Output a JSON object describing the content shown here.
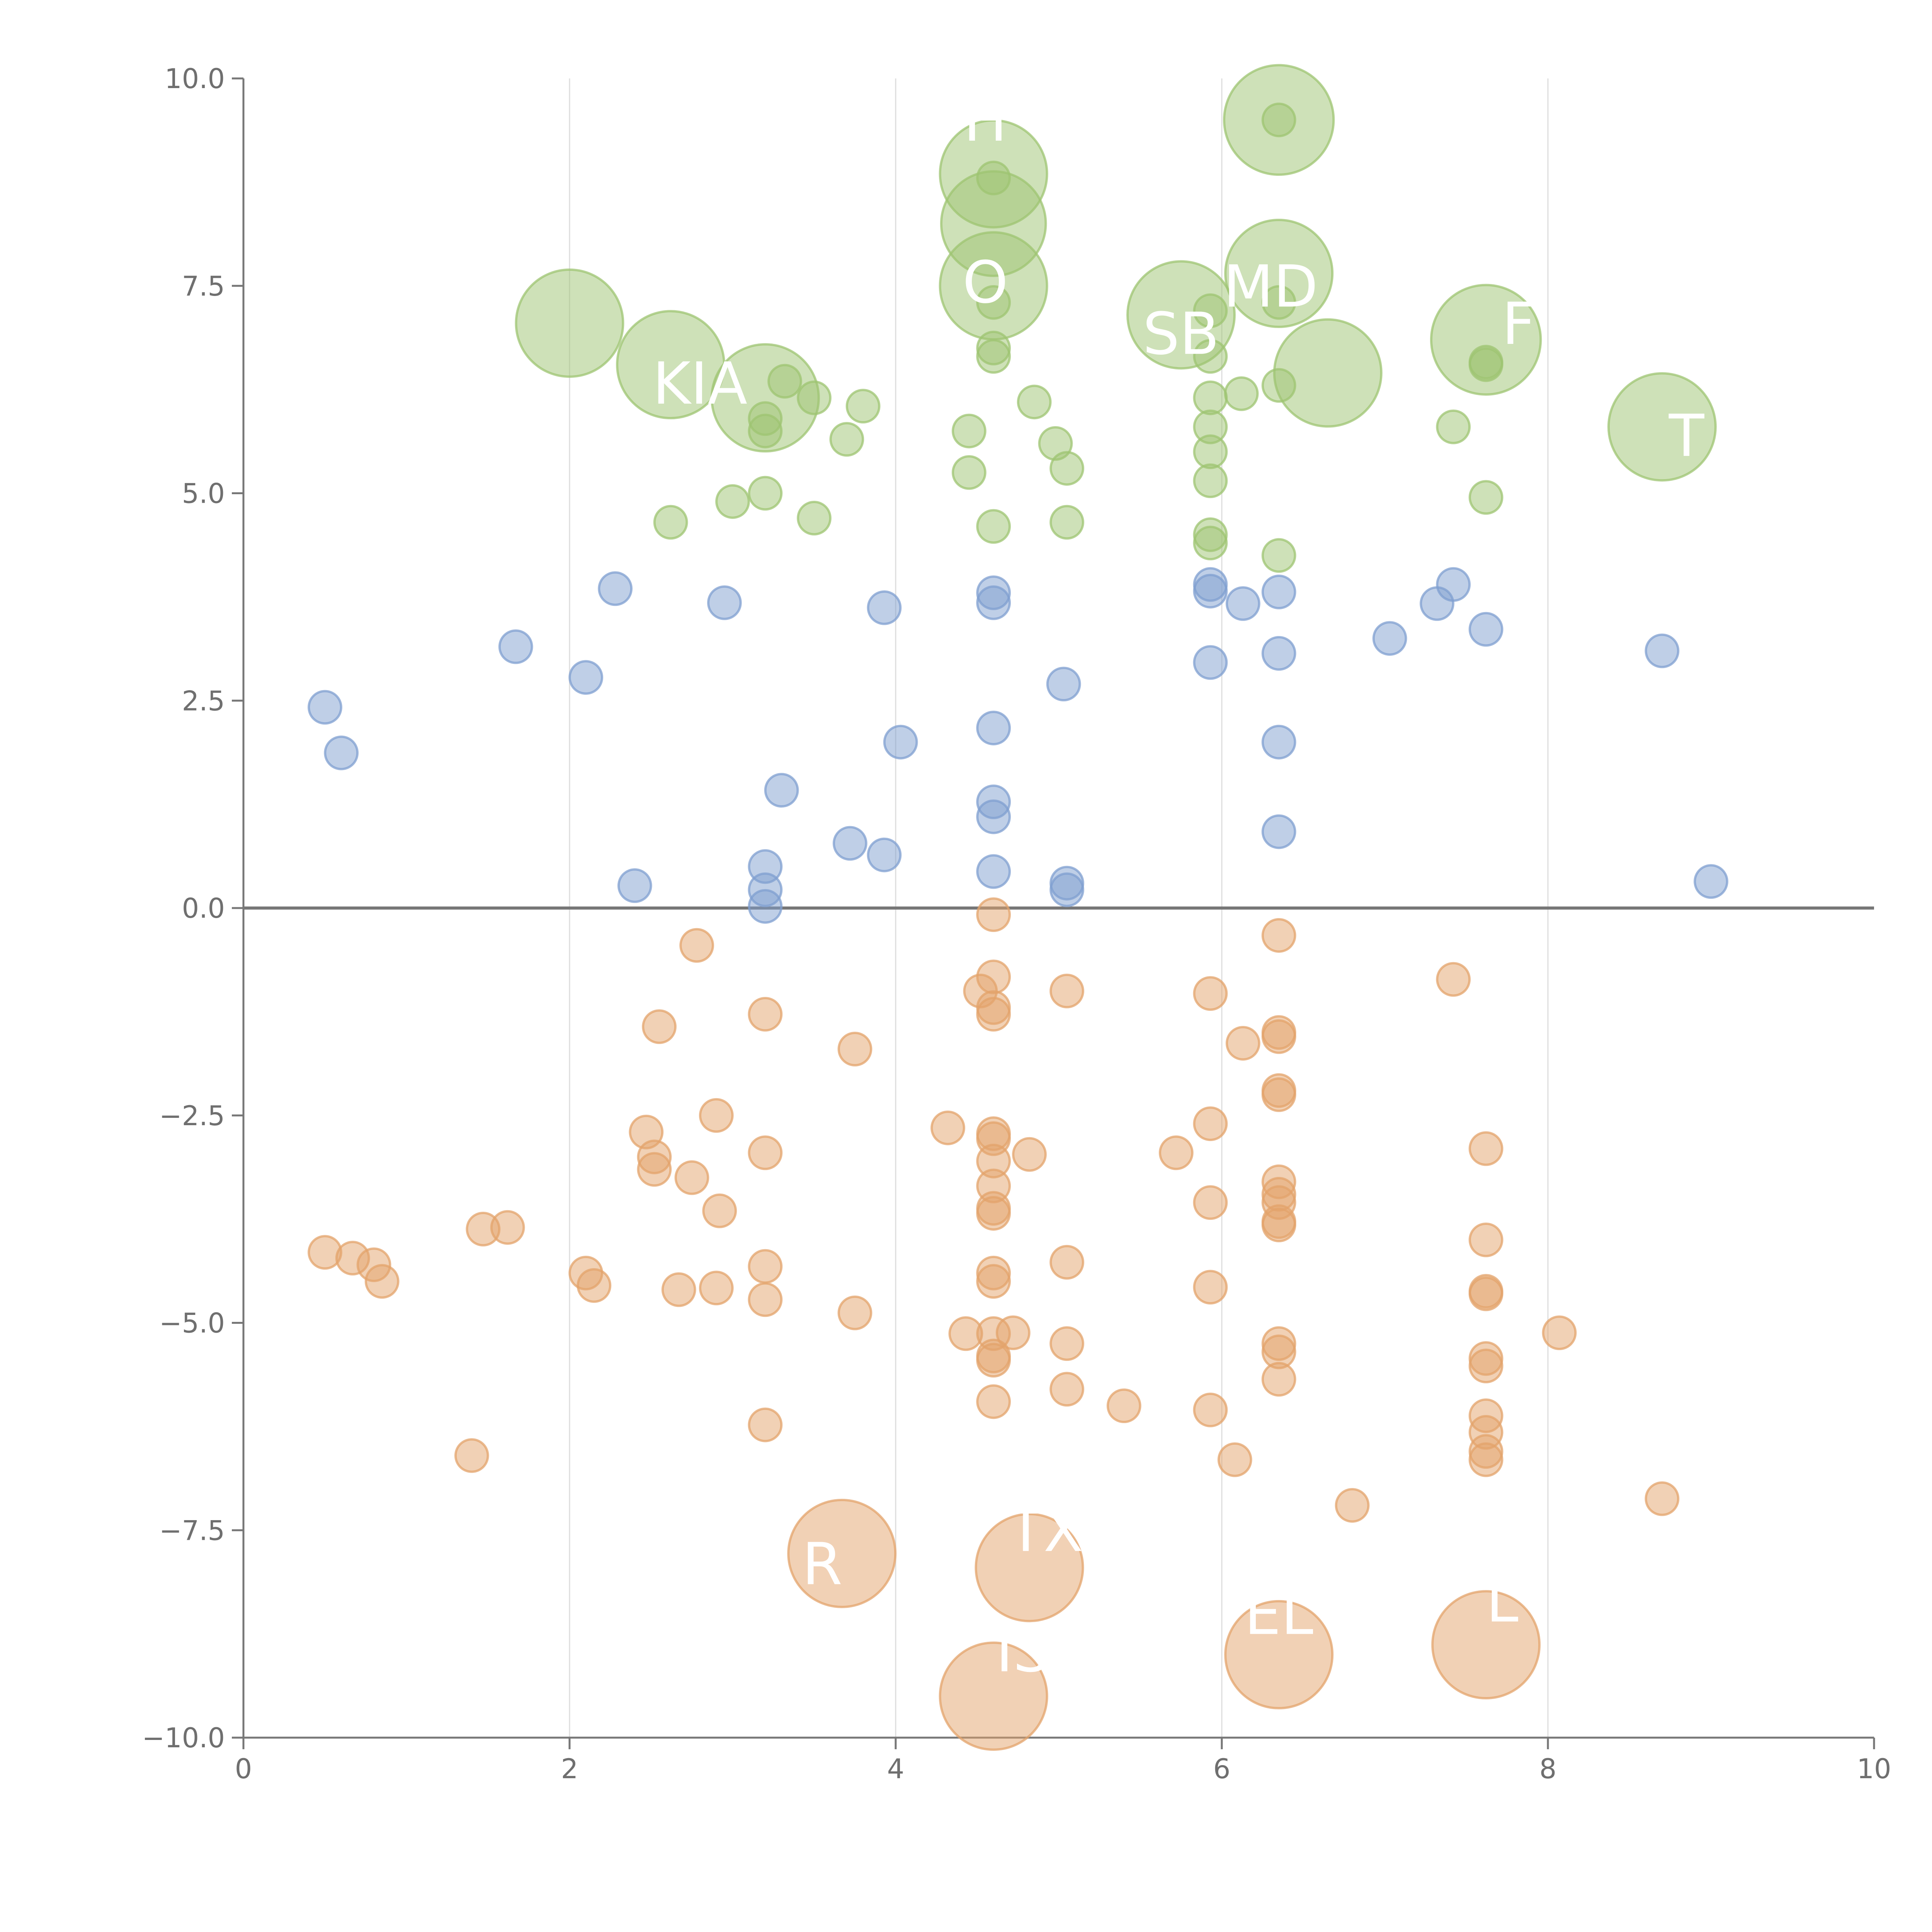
{
  "chart_data": {
    "type": "scatter",
    "title": "",
    "xlabel": "",
    "ylabel": "",
    "xlim": [
      0,
      10
    ],
    "ylim": [
      -10,
      10
    ],
    "x_ticks": [
      0,
      2,
      4,
      6,
      8,
      10
    ],
    "x_tick_labels": [
      "0",
      "2",
      "4",
      "6",
      "8",
      "10"
    ],
    "y_ticks": [
      10,
      7.5,
      5,
      2.5,
      0,
      -2.5,
      -5,
      -7.5,
      -10
    ],
    "y_tick_labels": [
      "10.0",
      "7.5",
      "5.0",
      "2.5",
      "0.0",
      "−2.5",
      "−5.0",
      "−7.5",
      "−10.0"
    ],
    "grid": "vertical",
    "zero_line": true,
    "colors": {
      "green": "#9dc472",
      "blue": "#7f9fd0",
      "orange": "#e3a36b",
      "axis": "#777777",
      "grid": "#dddddd",
      "label": "#ffffff"
    },
    "series": [
      {
        "group": "green",
        "points": [
          [
            6.35,
            9.5,
            44
          ],
          [
            6.35,
            9.5,
            13
          ],
          [
            4.6,
            8.85,
            43
          ],
          [
            4.6,
            8.8,
            13
          ],
          [
            4.6,
            8.25,
            42
          ],
          [
            4.6,
            7.5,
            43
          ],
          [
            4.6,
            7.3,
            13
          ],
          [
            6.35,
            7.65,
            43
          ],
          [
            6.35,
            7.3,
            13
          ],
          [
            2.0,
            7.05,
            43
          ],
          [
            5.75,
            7.15,
            43
          ],
          [
            5.93,
            7.2,
            13
          ],
          [
            7.62,
            6.85,
            44
          ],
          [
            7.62,
            6.58,
            13
          ],
          [
            7.62,
            6.55,
            13
          ],
          [
            6.65,
            6.45,
            43
          ],
          [
            2.62,
            6.55,
            43
          ],
          [
            3.2,
            6.15,
            43
          ],
          [
            3.2,
            5.9,
            13
          ],
          [
            3.2,
            5.75,
            13
          ],
          [
            3.32,
            6.35,
            13
          ],
          [
            3.5,
            6.15,
            13
          ],
          [
            3.8,
            6.05,
            13
          ],
          [
            3.7,
            5.65,
            13
          ],
          [
            4.6,
            6.75,
            13
          ],
          [
            4.6,
            6.65,
            13
          ],
          [
            4.85,
            6.1,
            13
          ],
          [
            4.45,
            5.75,
            13
          ],
          [
            4.45,
            5.25,
            13
          ],
          [
            4.98,
            5.6,
            13
          ],
          [
            5.05,
            5.3,
            13
          ],
          [
            5.05,
            4.65,
            13
          ],
          [
            4.6,
            4.6,
            13
          ],
          [
            5.93,
            6.65,
            13
          ],
          [
            5.93,
            6.15,
            13
          ],
          [
            6.12,
            6.2,
            13
          ],
          [
            6.35,
            6.3,
            13
          ],
          [
            5.93,
            5.8,
            13
          ],
          [
            5.93,
            5.5,
            13
          ],
          [
            5.93,
            5.15,
            13
          ],
          [
            5.93,
            4.5,
            13
          ],
          [
            5.93,
            4.4,
            13
          ],
          [
            6.35,
            4.25,
            13
          ],
          [
            8.7,
            5.8,
            43
          ],
          [
            7.42,
            5.8,
            13
          ],
          [
            7.62,
            4.95,
            13
          ],
          [
            2.62,
            4.65,
            13
          ],
          [
            3.0,
            4.9,
            13
          ],
          [
            3.2,
            5.0,
            13
          ],
          [
            3.5,
            4.7,
            13
          ]
        ]
      },
      {
        "group": "blue",
        "points": [
          [
            0.5,
            2.42,
            13
          ],
          [
            0.6,
            1.87,
            13
          ],
          [
            1.67,
            3.15,
            13
          ],
          [
            2.1,
            2.78,
            13
          ],
          [
            2.28,
            3.85,
            13
          ],
          [
            2.95,
            3.68,
            13
          ],
          [
            2.4,
            0.27,
            13
          ],
          [
            3.3,
            1.42,
            13
          ],
          [
            3.2,
            0.5,
            13
          ],
          [
            3.2,
            0.22,
            13
          ],
          [
            3.2,
            0.02,
            13
          ],
          [
            3.72,
            0.78,
            13
          ],
          [
            3.93,
            0.64,
            13
          ],
          [
            3.93,
            3.62,
            13
          ],
          [
            4.03,
            2.0,
            13
          ],
          [
            4.6,
            3.8,
            13
          ],
          [
            4.6,
            3.68,
            13
          ],
          [
            4.6,
            2.17,
            13
          ],
          [
            4.6,
            1.28,
            13
          ],
          [
            4.6,
            1.1,
            13
          ],
          [
            4.6,
            0.44,
            13
          ],
          [
            5.03,
            2.7,
            13
          ],
          [
            5.05,
            0.3,
            13
          ],
          [
            5.05,
            0.22,
            13
          ],
          [
            5.93,
            3.9,
            13
          ],
          [
            5.93,
            3.82,
            13
          ],
          [
            5.93,
            2.96,
            13
          ],
          [
            6.13,
            3.67,
            13
          ],
          [
            6.35,
            3.81,
            13
          ],
          [
            6.35,
            3.07,
            13
          ],
          [
            6.35,
            2.0,
            13
          ],
          [
            6.35,
            0.92,
            13
          ],
          [
            7.03,
            3.25,
            13
          ],
          [
            7.32,
            3.67,
            13
          ],
          [
            7.42,
            3.9,
            13
          ],
          [
            7.62,
            3.36,
            13
          ],
          [
            8.7,
            3.1,
            13
          ],
          [
            9.0,
            0.32,
            13
          ]
        ]
      },
      {
        "group": "orange",
        "points": [
          [
            4.6,
            -0.08,
            13
          ],
          [
            6.35,
            -0.33,
            13
          ],
          [
            2.78,
            -0.45,
            13
          ],
          [
            4.6,
            -0.83,
            13
          ],
          [
            4.52,
            -1.0,
            13
          ],
          [
            5.05,
            -1.0,
            13
          ],
          [
            5.93,
            -1.03,
            13
          ],
          [
            7.42,
            -0.86,
            13
          ],
          [
            4.6,
            -1.2,
            13
          ],
          [
            4.6,
            -1.28,
            13
          ],
          [
            3.2,
            -1.28,
            13
          ],
          [
            2.55,
            -1.43,
            13
          ],
          [
            3.75,
            -1.7,
            13
          ],
          [
            6.35,
            -1.5,
            13
          ],
          [
            6.35,
            -1.55,
            13
          ],
          [
            6.13,
            -1.63,
            13
          ],
          [
            6.35,
            -2.2,
            13
          ],
          [
            6.35,
            -2.25,
            13
          ],
          [
            2.9,
            -2.5,
            13
          ],
          [
            2.47,
            -2.7,
            13
          ],
          [
            2.52,
            -3.0,
            13
          ],
          [
            2.52,
            -3.15,
            13
          ],
          [
            2.75,
            -3.25,
            13
          ],
          [
            2.92,
            -3.65,
            13
          ],
          [
            3.2,
            -2.95,
            13
          ],
          [
            4.32,
            -2.65,
            13
          ],
          [
            4.6,
            -2.72,
            13
          ],
          [
            4.6,
            -2.78,
            13
          ],
          [
            4.6,
            -3.05,
            13
          ],
          [
            4.6,
            -3.35,
            13
          ],
          [
            4.6,
            -3.62,
            13
          ],
          [
            4.6,
            -3.68,
            13
          ],
          [
            4.82,
            -2.97,
            13
          ],
          [
            5.93,
            -2.6,
            13
          ],
          [
            5.72,
            -2.95,
            13
          ],
          [
            5.93,
            -3.55,
            13
          ],
          [
            6.35,
            -3.3,
            13
          ],
          [
            6.35,
            -3.45,
            13
          ],
          [
            6.35,
            -3.55,
            13
          ],
          [
            6.35,
            -3.78,
            13
          ],
          [
            6.35,
            -3.82,
            13
          ],
          [
            7.62,
            -2.9,
            13
          ],
          [
            7.62,
            -4.0,
            13
          ],
          [
            0.5,
            -4.15,
            13
          ],
          [
            0.67,
            -4.22,
            13
          ],
          [
            0.8,
            -4.3,
            13
          ],
          [
            0.85,
            -4.5,
            13
          ],
          [
            1.47,
            -3.87,
            13
          ],
          [
            1.62,
            -3.85,
            13
          ],
          [
            2.1,
            -4.4,
            13
          ],
          [
            2.15,
            -4.55,
            13
          ],
          [
            2.67,
            -4.6,
            13
          ],
          [
            2.9,
            -4.58,
            13
          ],
          [
            3.2,
            -4.32,
            13
          ],
          [
            3.2,
            -4.72,
            13
          ],
          [
            3.75,
            -4.88,
            13
          ],
          [
            4.6,
            -4.4,
            13
          ],
          [
            4.6,
            -4.5,
            13
          ],
          [
            5.05,
            -4.27,
            13
          ],
          [
            5.93,
            -4.57,
            13
          ],
          [
            7.62,
            -4.62,
            13
          ],
          [
            7.62,
            -4.65,
            13
          ],
          [
            4.43,
            -5.13,
            13
          ],
          [
            4.6,
            -5.13,
            13
          ],
          [
            4.72,
            -5.12,
            13
          ],
          [
            4.6,
            -5.4,
            13
          ],
          [
            4.6,
            -5.45,
            13
          ],
          [
            5.05,
            -5.25,
            13
          ],
          [
            5.05,
            -5.8,
            13
          ],
          [
            4.6,
            -5.95,
            13
          ],
          [
            5.4,
            -6.0,
            13
          ],
          [
            3.2,
            -6.23,
            13
          ],
          [
            1.4,
            -6.6,
            13
          ],
          [
            5.93,
            -6.05,
            13
          ],
          [
            6.08,
            -6.65,
            13
          ],
          [
            6.35,
            -5.25,
            13
          ],
          [
            6.35,
            -5.35,
            13
          ],
          [
            6.35,
            -5.68,
            13
          ],
          [
            6.8,
            -7.2,
            13
          ],
          [
            8.07,
            -5.12,
            13
          ],
          [
            7.62,
            -5.43,
            13
          ],
          [
            7.62,
            -5.52,
            13
          ],
          [
            7.62,
            -6.12,
            13
          ],
          [
            7.62,
            -6.32,
            13
          ],
          [
            7.62,
            -6.55,
            13
          ],
          [
            7.62,
            -6.65,
            13
          ],
          [
            8.7,
            -7.12,
            13
          ],
          [
            3.67,
            -7.78,
            43
          ],
          [
            4.82,
            -7.95,
            43
          ],
          [
            4.6,
            -9.5,
            43
          ],
          [
            6.35,
            -9.0,
            43
          ],
          [
            7.62,
            -8.88,
            43
          ]
        ]
      }
    ],
    "labels": [
      {
        "text": "H",
        "x": 4.55,
        "y": 9.25
      },
      {
        "text": "O",
        "x": 4.55,
        "y": 7.3
      },
      {
        "text": "MD",
        "x": 6.3,
        "y": 7.25
      },
      {
        "text": "SB",
        "x": 5.75,
        "y": 6.68
      },
      {
        "text": "KIA",
        "x": 2.8,
        "y": 6.08
      },
      {
        "text": "F",
        "x": 7.82,
        "y": 6.8
      },
      {
        "text": "T",
        "x": 8.85,
        "y": 5.45
      },
      {
        "text": "R",
        "x": 3.55,
        "y": -8.15
      },
      {
        "text": "TX",
        "x": 4.92,
        "y": -7.75
      },
      {
        "text": "EL",
        "x": 6.35,
        "y": -8.75
      },
      {
        "text": "L",
        "x": 7.72,
        "y": -8.6
      },
      {
        "text": "IS",
        "x": 4.78,
        "y": -9.2
      }
    ]
  }
}
